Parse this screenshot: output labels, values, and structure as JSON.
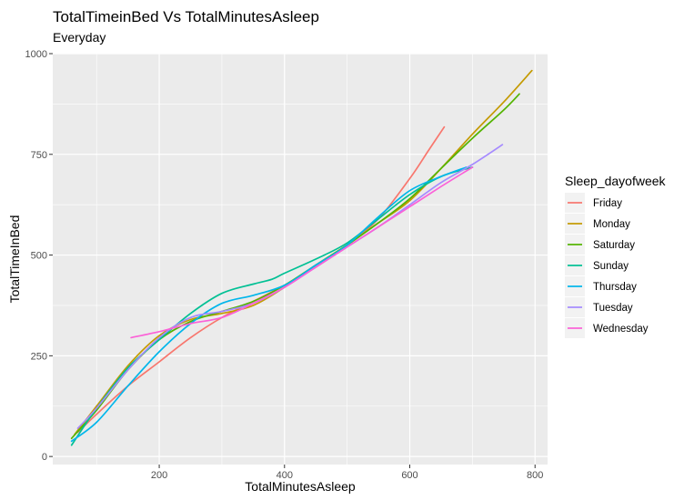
{
  "chart_data": {
    "type": "line",
    "title": "TotalTimeinBed Vs TotalMinutesAsleep",
    "subtitle": "Everyday",
    "xlabel": "TotalMinutesAsleep",
    "ylabel": "TotalTimeInBed",
    "xlim": [
      30,
      820
    ],
    "ylim": [
      -20,
      1000
    ],
    "x_ticks": [
      200,
      400,
      600,
      800
    ],
    "y_ticks": [
      0,
      250,
      500,
      750,
      1000
    ],
    "grid": true,
    "legend": {
      "title": "Sleep_dayofweek",
      "placement": "right"
    },
    "series": [
      {
        "name": "Friday",
        "color": "#F8766D",
        "x": [
          70,
          100,
          150,
          200,
          250,
          300,
          350,
          400,
          450,
          500,
          550,
          600,
          630,
          655
        ],
        "y": [
          60,
          105,
          175,
          235,
          295,
          345,
          385,
          425,
          470,
          525,
          590,
          690,
          760,
          818
        ]
      },
      {
        "name": "Monday",
        "color": "#C49A00",
        "x": [
          65,
          100,
          150,
          200,
          250,
          300,
          350,
          400,
          450,
          500,
          550,
          600,
          650,
          700,
          750,
          795
        ],
        "y": [
          55,
          125,
          225,
          300,
          340,
          355,
          375,
          420,
          475,
          525,
          580,
          635,
          715,
          800,
          880,
          958
        ]
      },
      {
        "name": "Saturday",
        "color": "#53B400",
        "x": [
          60,
          100,
          150,
          200,
          250,
          300,
          350,
          400,
          450,
          500,
          550,
          600,
          650,
          700,
          750,
          775
        ],
        "y": [
          45,
          115,
          215,
          290,
          335,
          360,
          385,
          425,
          475,
          525,
          580,
          640,
          715,
          790,
          860,
          900
        ]
      },
      {
        "name": "Sunday",
        "color": "#00C094",
        "x": [
          60,
          100,
          150,
          200,
          250,
          300,
          350,
          380,
          400,
          450,
          500,
          550,
          600,
          650,
          700
        ],
        "y": [
          28,
          120,
          220,
          290,
          355,
          405,
          428,
          440,
          455,
          490,
          530,
          590,
          650,
          695,
          718
        ]
      },
      {
        "name": "Thursday",
        "color": "#00B6EB",
        "x": [
          60,
          100,
          150,
          200,
          250,
          300,
          350,
          400,
          450,
          500,
          550,
          600,
          650,
          690
        ],
        "y": [
          38,
          85,
          175,
          260,
          330,
          380,
          400,
          425,
          475,
          525,
          595,
          660,
          695,
          718
        ]
      },
      {
        "name": "Tuesday",
        "color": "#A58AFF",
        "x": [
          70,
          100,
          150,
          200,
          250,
          300,
          350,
          400,
          450,
          500,
          550,
          600,
          650,
          700,
          748
        ],
        "y": [
          70,
          120,
          215,
          295,
          345,
          360,
          380,
          420,
          470,
          520,
          570,
          625,
          680,
          725,
          774
        ]
      },
      {
        "name": "Wednesday",
        "color": "#FB61D7",
        "x": [
          155,
          200,
          250,
          300,
          350,
          400,
          450,
          500,
          550,
          600,
          650,
          700
        ],
        "y": [
          295,
          310,
          330,
          345,
          380,
          420,
          470,
          520,
          570,
          620,
          670,
          718
        ]
      }
    ]
  }
}
